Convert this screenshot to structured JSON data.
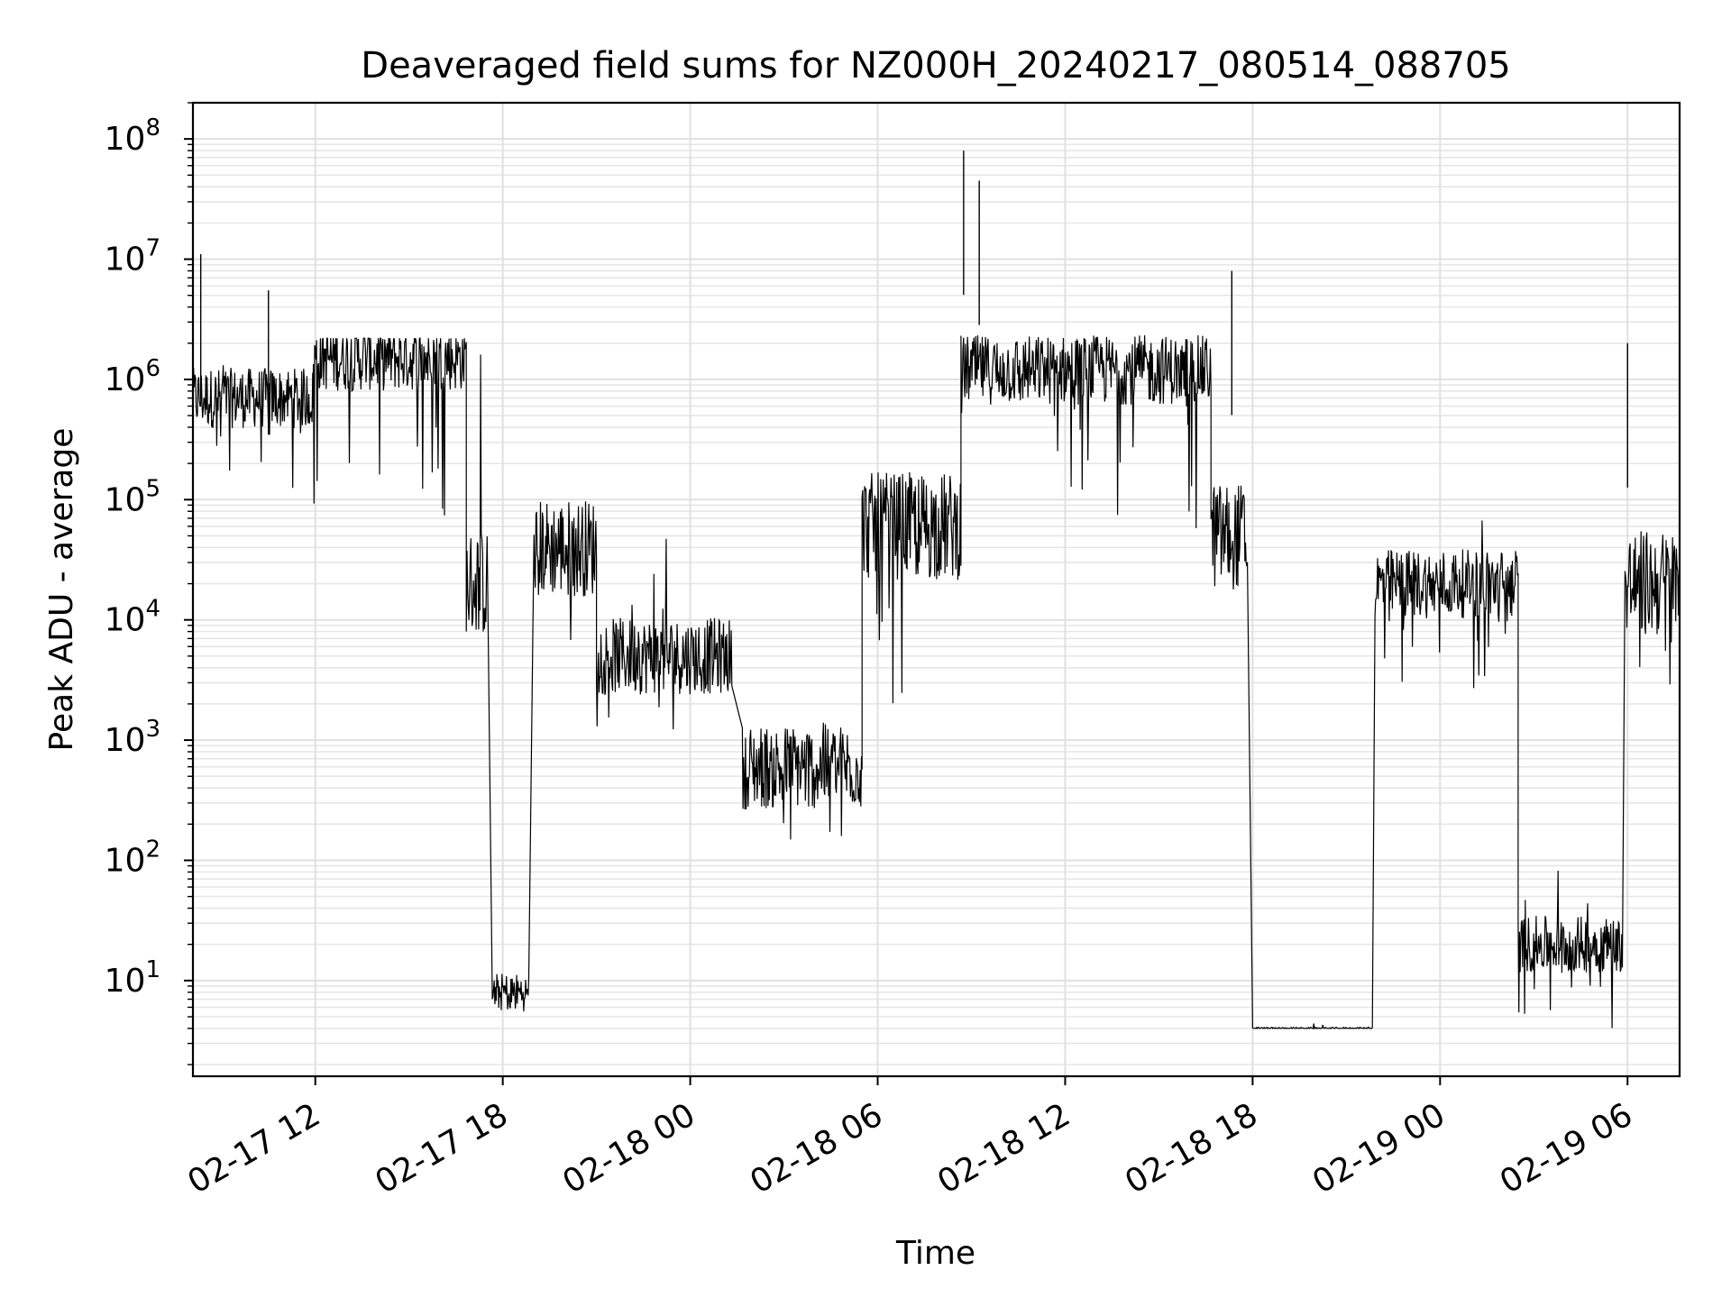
{
  "chart_data": {
    "type": "line",
    "title": "Deaveraged field sums for NZ000H_20240217_080514_088705",
    "xlabel": "Time",
    "ylabel": "Peak ADU - average",
    "yscale": "log",
    "ylim": [
      1.6,
      200000000.0
    ],
    "xlim": [
      "02-17 08:05",
      "02-19 07:40"
    ],
    "grid": true,
    "line_color": "#000000",
    "x_ticks": [
      "02-17 12",
      "02-17 18",
      "02-18 00",
      "02-18 06",
      "02-18 12",
      "02-18 18",
      "02-19 00",
      "02-19 06"
    ],
    "y_ticks": [
      {
        "base": "10",
        "exp": "1",
        "value": 10
      },
      {
        "base": "10",
        "exp": "2",
        "value": 100
      },
      {
        "base": "10",
        "exp": "3",
        "value": 1000
      },
      {
        "base": "10",
        "exp": "4",
        "value": 10000
      },
      {
        "base": "10",
        "exp": "5",
        "value": 100000
      },
      {
        "base": "10",
        "exp": "6",
        "value": 1000000
      },
      {
        "base": "10",
        "exp": "7",
        "value": 10000000
      },
      {
        "base": "10",
        "exp": "8",
        "value": 100000000
      }
    ],
    "series": [
      {
        "segments": [
          {
            "x0": "02-17 08:05",
            "x1": "02-17 11:55",
            "center": 700000,
            "lo": 90000,
            "hi": 2500000
          },
          {
            "x0": "02-17 11:55",
            "x1": "02-17 16:50",
            "center": 1500000,
            "lo": 60000,
            "hi": 2200000
          },
          {
            "x0": "02-17 16:50",
            "x1": "02-17 17:30",
            "center": 20000,
            "lo": 8000,
            "hi": 5500000
          },
          {
            "x0": "02-17 17:40",
            "x1": "02-17 18:50",
            "center": 8,
            "lo": 4,
            "hi": 33
          },
          {
            "x0": "02-17 19:00",
            "x1": "02-17 21:00",
            "center": 40000,
            "lo": 6000,
            "hi": 1300000
          },
          {
            "x0": "02-17 21:00",
            "x1": "02-18 01:20",
            "center": 5000,
            "lo": 1200,
            "hi": 80000
          },
          {
            "x0": "02-18 01:40",
            "x1": "02-18 05:30",
            "center": 600,
            "lo": 130,
            "hi": 14000
          },
          {
            "x0": "02-18 05:30",
            "x1": "02-18 08:40",
            "center": 60000,
            "lo": 2000,
            "hi": 2000000
          },
          {
            "x0": "02-18 08:40",
            "x1": "02-18 16:40",
            "center": 1200000,
            "lo": 55000,
            "hi": 2500000
          },
          {
            "x0": "02-18 16:40",
            "x1": "02-18 17:50",
            "center": 50000,
            "lo": 11000,
            "hi": 7500000
          },
          {
            "x0": "02-18 18:00",
            "x1": "02-18 21:50",
            "center": 4,
            "lo": 4,
            "hi": 4.5
          },
          {
            "x0": "02-18 21:55",
            "x1": "02-19 02:30",
            "center": 20000,
            "lo": 2500,
            "hi": 110000
          },
          {
            "x0": "02-19 02:30",
            "x1": "02-19 05:50",
            "center": 20,
            "lo": 4,
            "hi": 90
          },
          {
            "x0": "02-19 05:55",
            "x1": "02-19 07:40",
            "center": 20000,
            "lo": 2500,
            "hi": 2000000
          }
        ],
        "spikes": [
          {
            "x": "02-17 08:20",
            "value": 11000000
          },
          {
            "x": "02-17 10:30",
            "value": 5500000
          },
          {
            "x": "02-18 08:45",
            "value": 80000000
          },
          {
            "x": "02-18 09:15",
            "value": 45000000
          },
          {
            "x": "02-18 17:20",
            "value": 8000000
          },
          {
            "x": "02-19 06:00",
            "value": 2000000
          }
        ]
      }
    ]
  }
}
